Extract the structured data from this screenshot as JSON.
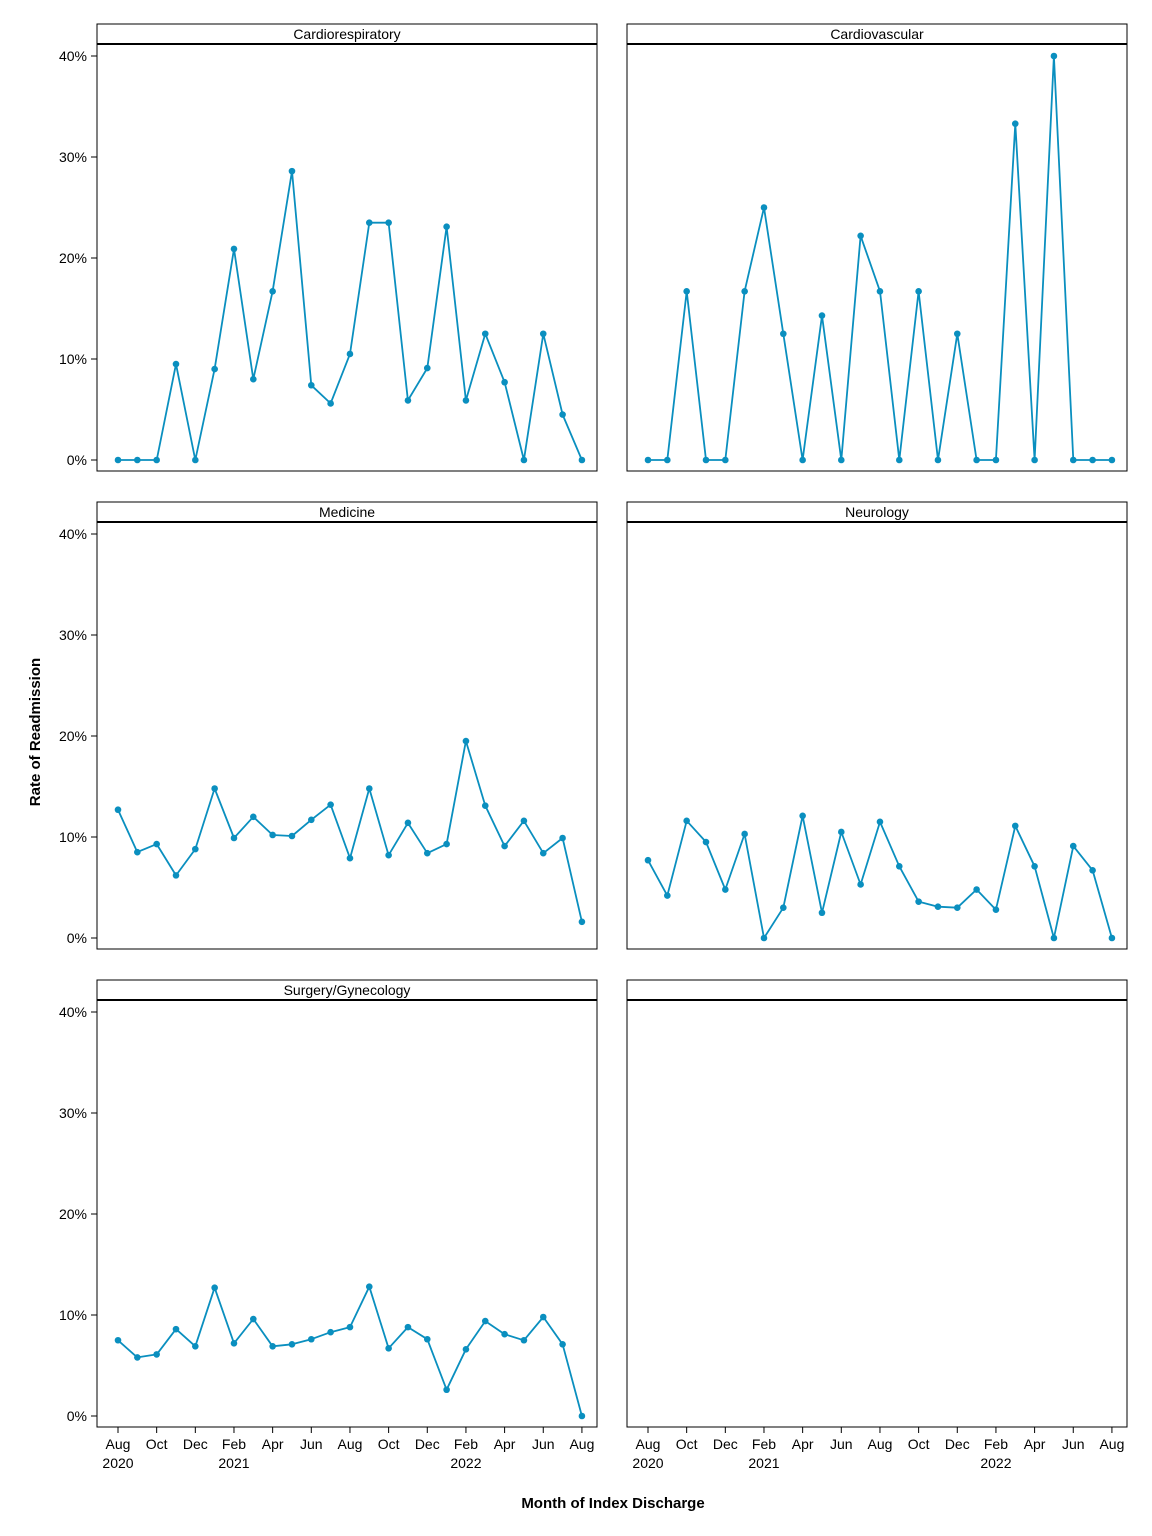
{
  "chart_data": {
    "type": "line",
    "xlabel": "Month of Index Discharge",
    "ylabel": "Rate of Readmission",
    "ylim": [
      0,
      0.4
    ],
    "y_ticks": [
      0,
      0.1,
      0.2,
      0.3,
      0.4
    ],
    "y_tick_labels": [
      "0%",
      "10%",
      "20%",
      "30%",
      "40%"
    ],
    "x": [
      "2020-08",
      "2020-09",
      "2020-10",
      "2020-11",
      "2020-12",
      "2021-01",
      "2021-02",
      "2021-03",
      "2021-04",
      "2021-05",
      "2021-06",
      "2021-07",
      "2021-08",
      "2021-09",
      "2021-10",
      "2021-11",
      "2021-12",
      "2022-01",
      "2022-02",
      "2022-03",
      "2022-04",
      "2022-05",
      "2022-06",
      "2022-07",
      "2022-08"
    ],
    "x_ticks": [
      {
        "month": "2020-08",
        "label": "Aug",
        "year": "2020"
      },
      {
        "month": "2020-10",
        "label": "Oct",
        "year": ""
      },
      {
        "month": "2020-12",
        "label": "Dec",
        "year": ""
      },
      {
        "month": "2021-02",
        "label": "Feb",
        "year": "2021"
      },
      {
        "month": "2021-04",
        "label": "Apr",
        "year": ""
      },
      {
        "month": "2021-06",
        "label": "Jun",
        "year": ""
      },
      {
        "month": "2021-08",
        "label": "Aug",
        "year": ""
      },
      {
        "month": "2021-10",
        "label": "Oct",
        "year": ""
      },
      {
        "month": "2021-12",
        "label": "Dec",
        "year": ""
      },
      {
        "month": "2022-02",
        "label": "Feb",
        "year": "2022"
      },
      {
        "month": "2022-04",
        "label": "Apr",
        "year": ""
      },
      {
        "month": "2022-06",
        "label": "Jun",
        "year": ""
      },
      {
        "month": "2022-08",
        "label": "Aug",
        "year": ""
      }
    ],
    "line_color": "#0a8fbf",
    "legend": "none",
    "grid": false,
    "panels": [
      {
        "name": "Cardiorespiratory",
        "values": [
          0,
          0,
          0,
          0.095,
          0,
          0.09,
          0.209,
          0.08,
          0.167,
          0.286,
          0.074,
          0.056,
          0.105,
          0.235,
          0.235,
          0.059,
          0.091,
          0.231,
          0.059,
          0.125,
          0.077,
          0,
          0.125,
          0.045,
          0
        ]
      },
      {
        "name": "Cardiovascular",
        "values": [
          0,
          0,
          0.167,
          0,
          0,
          0.167,
          0.25,
          0.125,
          0,
          0.143,
          0,
          0.222,
          0.167,
          0,
          0.167,
          0,
          0.125,
          0,
          0,
          0.333,
          0,
          0.4,
          0,
          0,
          0
        ]
      },
      {
        "name": "Medicine",
        "values": [
          0.127,
          0.085,
          0.093,
          0.062,
          0.088,
          0.148,
          0.099,
          0.12,
          0.102,
          0.101,
          0.117,
          0.132,
          0.079,
          0.148,
          0.082,
          0.114,
          0.084,
          0.093,
          0.195,
          0.131,
          0.091,
          0.116,
          0.084,
          0.099,
          0.016
        ]
      },
      {
        "name": "Neurology",
        "values": [
          0.077,
          0.042,
          0.116,
          0.095,
          0.048,
          0.103,
          0,
          0.03,
          0.121,
          0.025,
          0.105,
          0.053,
          0.115,
          0.071,
          0.036,
          0.031,
          0.03,
          0.048,
          0.028,
          0.111,
          0.071,
          0,
          0.091,
          0.067,
          0
        ]
      },
      {
        "name": "Surgery/Gynecology",
        "values": [
          0.075,
          0.058,
          0.061,
          0.086,
          0.069,
          0.127,
          0.072,
          0.096,
          0.069,
          0.071,
          0.076,
          0.083,
          0.088,
          0.128,
          0.067,
          0.088,
          0.076,
          0.026,
          0.066,
          0.094,
          0.081,
          0.075,
          0.098,
          0.071,
          0
        ]
      },
      {
        "name": "",
        "values": []
      }
    ]
  }
}
